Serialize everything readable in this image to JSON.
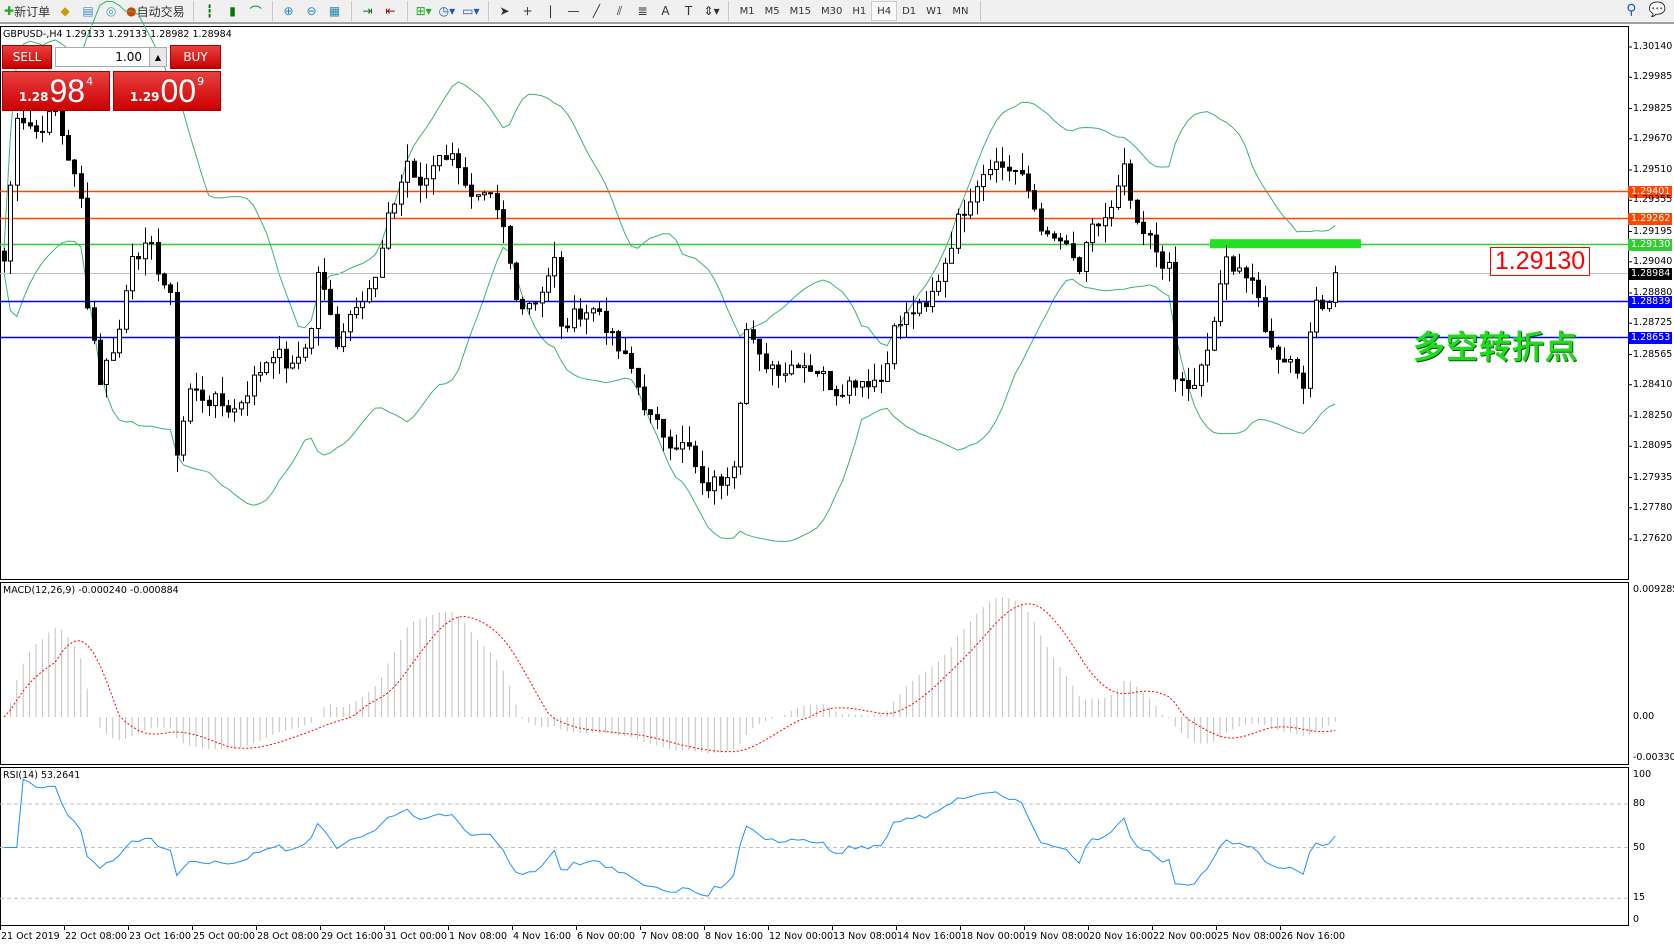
{
  "toolbar": {
    "new_order": "新订单",
    "auto_trading": "自动交易",
    "timeframes": [
      "M1",
      "M5",
      "M15",
      "M30",
      "H1",
      "H4",
      "D1",
      "W1",
      "MN"
    ],
    "active_timeframe": "H4",
    "icons": [
      "new-order-icon",
      "market-watch-icon",
      "navigator-icon",
      "signal-icon",
      "auto-trading-icon",
      "bar-chart-icon",
      "candlestick-icon",
      "line-chart-icon",
      "zoom-in-icon",
      "zoom-out-icon",
      "tile-windows-icon",
      "auto-scroll-icon",
      "chart-shift-icon",
      "indicators-icon",
      "periods-icon",
      "templates-icon",
      "cursor-icon",
      "crosshair-icon",
      "vertical-line-icon",
      "horizontal-line-icon",
      "trendline-icon",
      "equidistant-channel-icon",
      "fibonacci-icon",
      "text-icon",
      "text-label-icon",
      "arrows-icon",
      "search-icon",
      "chat-icon"
    ]
  },
  "chart": {
    "symbol_info": "GBPUSD-,H4  1.29133 1.29133 1.28982 1.28984",
    "macd_label": "MACD(12,26,9) -0.000240 -0.000884",
    "rsi_label": "RSI(14) 53.2641",
    "price_box": "1.29130",
    "annotation": "多空转折点",
    "colors": {
      "bull": "#ffffff",
      "bear": "#000000",
      "bands": "#3cb371",
      "macd_hist": "#c0c0c0",
      "macd_signal": "#ff0000",
      "rsi": "#1e90ff",
      "annotation": "#1fdc1f"
    }
  },
  "trade_panel": {
    "sell": "SELL",
    "buy": "BUY",
    "lot": "1.00",
    "sell_price": {
      "prefix": "1.28",
      "big": "98",
      "sup": "4"
    },
    "buy_price": {
      "prefix": "1.29",
      "big": "00",
      "sup": "9"
    }
  },
  "chart_data": {
    "type": "candlestick",
    "price_axis": {
      "range": [
        1.2762,
        1.3014
      ],
      "ticks": [
        "1.30140",
        "1.29985",
        "1.29825",
        "1.29670",
        "1.29510",
        "1.29355",
        "1.29195",
        "1.29040",
        "1.28880",
        "1.28725",
        "1.28565",
        "1.28410",
        "1.28250",
        "1.28095",
        "1.27935",
        "1.27780",
        "1.27620"
      ]
    },
    "horizontal_lines": [
      {
        "price": "1.29401",
        "color": "#ff4500"
      },
      {
        "price": "1.29262",
        "color": "#ff4500"
      },
      {
        "price": "1.29130",
        "color": "#32cd32"
      },
      {
        "price": "1.28984",
        "color": "#000000",
        "kind": "bid"
      },
      {
        "price": "1.28839",
        "color": "#0000ff"
      },
      {
        "price": "1.28653",
        "color": "#0000ff"
      }
    ],
    "green_zone_price": 1.2913,
    "close_path": [
      [
        0,
        1.29045
      ],
      [
        2,
        1.29809
      ],
      [
        5,
        1.29707
      ],
      [
        8,
        1.29809
      ],
      [
        12,
        1.29351
      ],
      [
        13,
        1.28842
      ],
      [
        15,
        1.28435
      ],
      [
        18,
        1.28689
      ],
      [
        20,
        1.29096
      ],
      [
        23,
        1.29096
      ],
      [
        26,
        1.28842
      ],
      [
        27,
        1.28078
      ],
      [
        29,
        1.28384
      ],
      [
        32,
        1.28333
      ],
      [
        36,
        1.28282
      ],
      [
        39,
        1.28435
      ],
      [
        42,
        1.28587
      ],
      [
        45,
        1.28486
      ],
      [
        48,
        1.28689
      ],
      [
        49,
        1.28994
      ],
      [
        52,
        1.28638
      ],
      [
        55,
        1.28842
      ],
      [
        58,
        1.28944
      ],
      [
        60,
        1.29249
      ],
      [
        63,
        1.29555
      ],
      [
        65,
        1.29402
      ],
      [
        68,
        1.29605
      ],
      [
        71,
        1.29555
      ],
      [
        73,
        1.29351
      ],
      [
        76,
        1.29351
      ],
      [
        78,
        1.29198
      ],
      [
        80,
        1.28842
      ],
      [
        83,
        1.28842
      ],
      [
        86,
        1.29045
      ],
      [
        87,
        1.28689
      ],
      [
        90,
        1.28791
      ],
      [
        93,
        1.28791
      ],
      [
        95,
        1.28638
      ],
      [
        98,
        1.28486
      ],
      [
        101,
        1.28231
      ],
      [
        104,
        1.28129
      ],
      [
        107,
        1.28078
      ],
      [
        109,
        1.27875
      ],
      [
        112,
        1.27925
      ],
      [
        114,
        1.28027
      ],
      [
        116,
        1.28689
      ],
      [
        118,
        1.28537
      ],
      [
        122,
        1.28486
      ],
      [
        124,
        1.28537
      ],
      [
        127,
        1.28486
      ],
      [
        130,
        1.28384
      ],
      [
        133,
        1.28435
      ],
      [
        137,
        1.28435
      ],
      [
        139,
        1.28689
      ],
      [
        142,
        1.28791
      ],
      [
        144,
        1.28791
      ],
      [
        147,
        1.29045
      ],
      [
        149,
        1.29249
      ],
      [
        152,
        1.29453
      ],
      [
        154,
        1.29555
      ],
      [
        158,
        1.29504
      ],
      [
        160,
        1.29402
      ],
      [
        163,
        1.29147
      ],
      [
        165,
        1.29147
      ],
      [
        168,
        1.28994
      ],
      [
        170,
        1.29198
      ],
      [
        173,
        1.293
      ],
      [
        175,
        1.29504
      ],
      [
        177,
        1.29198
      ],
      [
        179,
        1.29147
      ],
      [
        182,
        1.28994
      ],
      [
        183,
        1.28435
      ],
      [
        186,
        1.28384
      ],
      [
        188,
        1.28587
      ],
      [
        191,
        1.29045
      ],
      [
        193,
        1.2902
      ],
      [
        196,
        1.28842
      ],
      [
        198,
        1.28587
      ],
      [
        201,
        1.28537
      ],
      [
        203,
        1.28435
      ],
      [
        205,
        1.28842
      ],
      [
        207,
        1.28842
      ],
      [
        208,
        1.28984
      ]
    ],
    "macd": {
      "range": [
        -0.003305,
        0.009285
      ],
      "ticks": [
        "0.009285",
        "0.00",
        "-0.003305"
      ]
    },
    "rsi": {
      "range": [
        0,
        100
      ],
      "levels": [
        "80",
        "50",
        "15"
      ],
      "ticks": [
        "100",
        "80",
        "50",
        "15",
        "0"
      ]
    },
    "time_labels": [
      "21 Oct 2019",
      "22 Oct 08:00",
      "23 Oct 16:00",
      "25 Oct 00:00",
      "28 Oct 08:00",
      "29 Oct 16:00",
      "31 Oct 00:00",
      "1 Nov 08:00",
      "4 Nov 16:00",
      "6 Nov 00:00",
      "7 Nov 08:00",
      "8 Nov 16:00",
      "12 Nov 00:00",
      "13 Nov 08:00",
      "14 Nov 16:00",
      "18 Nov 00:00",
      "19 Nov 08:00",
      "20 Nov 16:00",
      "22 Nov 00:00",
      "25 Nov 08:00",
      "26 Nov 16:00"
    ]
  }
}
